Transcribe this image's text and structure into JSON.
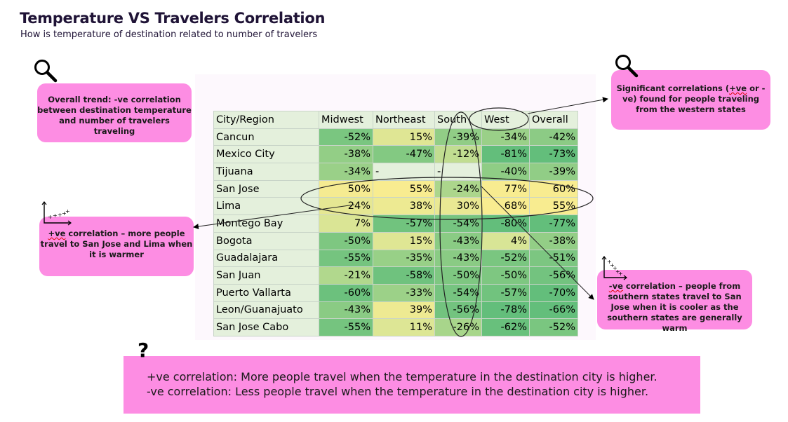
{
  "header": {
    "title": "Temperature VS Travelers Correlation",
    "subtitle": "How is temperature of destination related to number of travelers"
  },
  "chart_data": {
    "type": "heatmap",
    "corner_label": "City/Region",
    "columns": [
      "Midwest",
      "Northeast",
      "South",
      "West",
      "Overall"
    ],
    "rows": [
      {
        "city": "Cancun",
        "values": [
          -52,
          15,
          -39,
          -34,
          -42
        ]
      },
      {
        "city": "Mexico City",
        "values": [
          -38,
          -47,
          -12,
          -81,
          -73
        ]
      },
      {
        "city": "Tijuana",
        "values": [
          -34,
          null,
          null,
          -40,
          -39
        ]
      },
      {
        "city": "San Jose",
        "values": [
          50,
          55,
          -24,
          77,
          60
        ]
      },
      {
        "city": "Lima",
        "values": [
          24,
          38,
          30,
          68,
          55
        ]
      },
      {
        "city": "Montego Bay",
        "values": [
          7,
          -57,
          -54,
          -80,
          -77
        ]
      },
      {
        "city": "Bogota",
        "values": [
          -50,
          15,
          -43,
          4,
          -38
        ]
      },
      {
        "city": "Guadalajara",
        "values": [
          -55,
          -35,
          -43,
          -52,
          -51
        ]
      },
      {
        "city": "San Juan",
        "values": [
          -21,
          -58,
          -50,
          -50,
          -56
        ]
      },
      {
        "city": "Puerto Vallarta",
        "values": [
          -60,
          -33,
          -54,
          -57,
          -70
        ]
      },
      {
        "city": "Leon/Guanajuato",
        "values": [
          -43,
          39,
          -56,
          -78,
          -66
        ]
      },
      {
        "city": "San Jose Cabo",
        "values": [
          -55,
          11,
          -26,
          -62,
          -52
        ]
      }
    ],
    "value_suffix": "%",
    "missing_label": "-",
    "colors": {
      "positive": "#f8ec90",
      "negative": "#63be7b",
      "missing": "#e4f0dc"
    }
  },
  "annotations": {
    "overall": "Overall trend: -ve correlation between destination temperature and number of travelers traveling",
    "significant_pre": "Significant correlations (",
    "significant_mid": "+ve",
    "significant_post": " or -ve) found for people traveling from the western states",
    "positive_pre": "",
    "positive_mid": "+ve",
    "positive_post": " correlation – more people travel to San Jose and Lima when it is warmer",
    "negative_pre": "",
    "negative_mid": "-ve",
    "negative_post": " correlation – people from southern states travel to San Jose when it is cooler as the southern states are generally warm"
  },
  "footer": {
    "question_mark": "?",
    "line1": "+ve correlation: More people travel when the temperature in the destination city is higher.",
    "line2": "-ve correlation: Less people travel when the temperature in the destination city is higher."
  },
  "icons": [
    "magnifier-icon",
    "magnifier-icon",
    "scatter-plot-icon",
    "scatter-plot-icon"
  ]
}
